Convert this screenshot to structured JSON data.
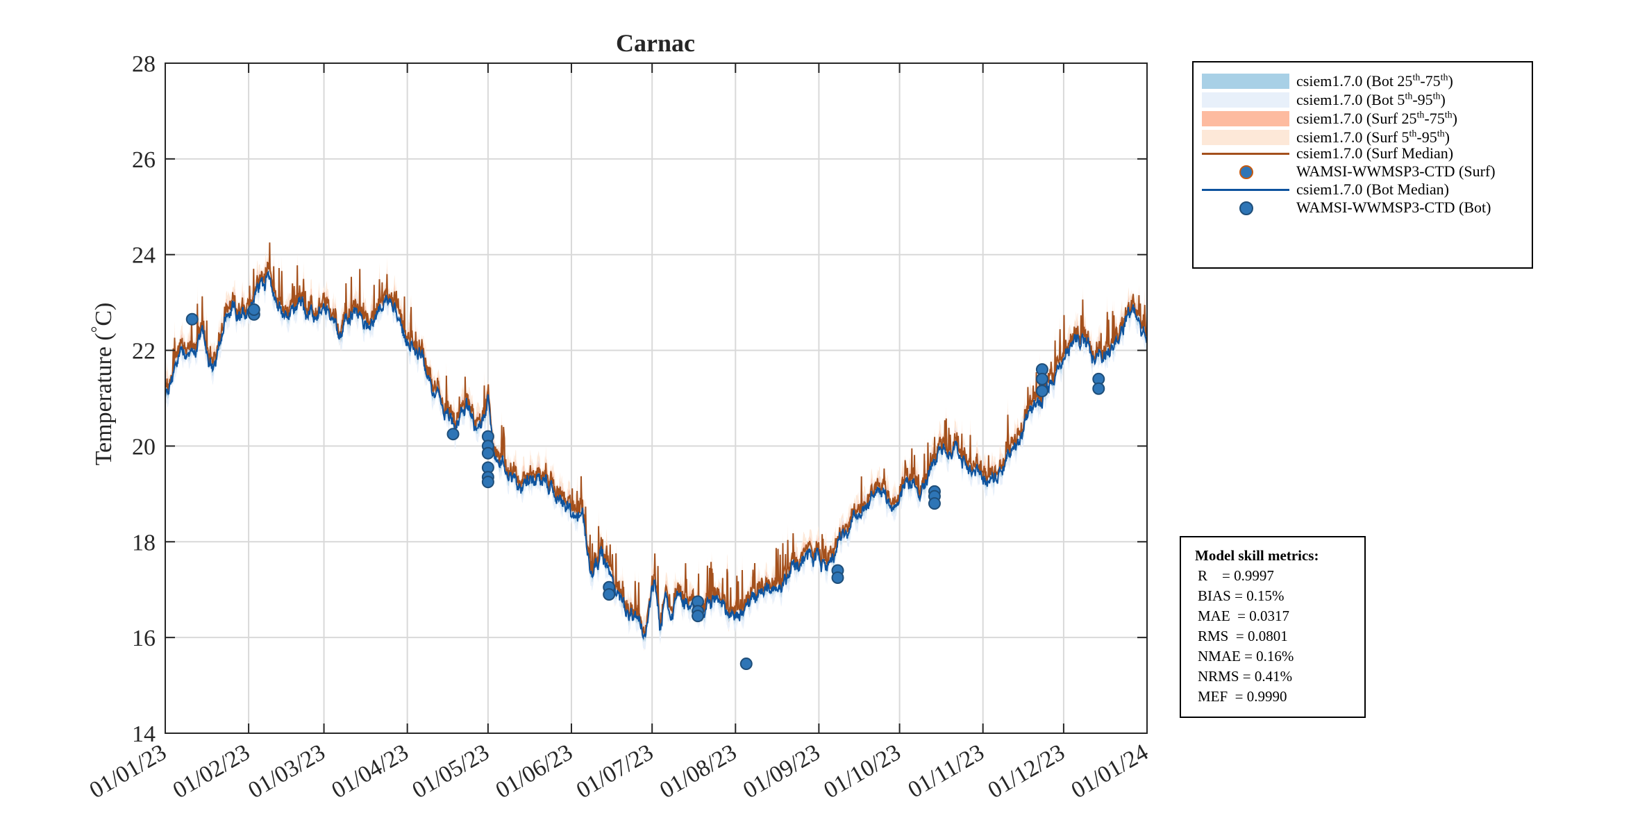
{
  "chart_data": {
    "type": "line",
    "title": "Carnac",
    "ylabel": "Temperature (°C)",
    "ylabel_text": "Temperature (",
    "ylabel_degree": "°",
    "ylabel_unit": "C)",
    "xlabel": "",
    "ylim": [
      14,
      28
    ],
    "yticks": [
      14,
      16,
      18,
      20,
      22,
      24,
      26,
      28
    ],
    "xlim_day": [
      0,
      365
    ],
    "xticks": [
      {
        "day": 0,
        "label": "01/01/23"
      },
      {
        "day": 31,
        "label": "01/02/23"
      },
      {
        "day": 59,
        "label": "01/03/23"
      },
      {
        "day": 90,
        "label": "01/04/23"
      },
      {
        "day": 120,
        "label": "01/05/23"
      },
      {
        "day": 151,
        "label": "01/06/23"
      },
      {
        "day": 181,
        "label": "01/07/23"
      },
      {
        "day": 212,
        "label": "01/08/23"
      },
      {
        "day": 243,
        "label": "01/09/23"
      },
      {
        "day": 273,
        "label": "01/10/23"
      },
      {
        "day": 304,
        "label": "01/11/23"
      },
      {
        "day": 334,
        "label": "01/12/23"
      },
      {
        "day": 365,
        "label": "01/01/24"
      }
    ],
    "grid": true,
    "colors": {
      "bot_median": "#0d539e",
      "surf_median": "#a4501c",
      "bot_25_75": "#a8d0e6",
      "bot_5_95": "#e8f0fa",
      "surf_25_75": "#fdbba0",
      "surf_5_95": "#fde8d8",
      "marker_fill": "#2e75b6",
      "marker_edge": "#1f4e79",
      "surf_marker_edge": "#c55a11"
    },
    "series_anchors": {
      "name": "csiem1.7.0 (Bot Median)",
      "day": [
        0,
        3,
        6,
        10,
        14,
        18,
        22,
        25,
        28,
        31,
        34,
        38,
        42,
        46,
        50,
        55,
        60,
        65,
        70,
        75,
        80,
        84,
        88,
        92,
        96,
        100,
        104,
        108,
        112,
        116,
        118,
        120,
        122,
        124,
        128,
        132,
        136,
        140,
        144,
        148,
        151,
        155,
        158,
        162,
        166,
        170,
        174,
        178,
        180,
        182,
        184,
        186,
        188,
        190,
        195,
        200,
        205,
        210,
        215,
        220,
        225,
        230,
        235,
        240,
        245,
        250,
        255,
        260,
        265,
        270,
        275,
        280,
        285,
        290,
        295,
        300,
        305,
        310,
        315,
        320,
        325,
        330,
        335,
        340,
        345,
        350,
        355,
        360,
        365
      ],
      "temp": [
        21.0,
        21.5,
        22.1,
        21.9,
        22.3,
        21.5,
        22.6,
        22.8,
        22.6,
        22.9,
        23.3,
        23.6,
        22.9,
        22.7,
        23.0,
        22.6,
        22.8,
        22.4,
        22.8,
        22.5,
        22.9,
        23.0,
        22.5,
        22.0,
        21.7,
        21.2,
        20.6,
        20.4,
        20.8,
        20.3,
        20.6,
        21.0,
        20.0,
        19.6,
        19.5,
        19.2,
        19.4,
        19.3,
        19.0,
        18.8,
        18.5,
        18.7,
        17.4,
        17.8,
        17.2,
        16.8,
        16.3,
        16.0,
        16.7,
        17.3,
        16.2,
        16.8,
        16.4,
        16.9,
        16.7,
        16.5,
        16.8,
        16.4,
        16.6,
        16.9,
        17.0,
        17.3,
        17.5,
        17.7,
        17.4,
        18.0,
        18.4,
        18.8,
        19.0,
        18.8,
        19.3,
        19.1,
        19.6,
        19.9,
        19.8,
        19.5,
        19.2,
        19.4,
        19.9,
        20.4,
        21.0,
        21.4,
        22.0,
        22.2,
        21.9,
        22.0,
        22.4,
        22.9,
        22.3
      ]
    },
    "observations": {
      "name": "WAMSI-WWMSP3-CTD (Bot)",
      "points": [
        {
          "day": 10,
          "temp": 22.65
        },
        {
          "day": 33,
          "temp": 22.75
        },
        {
          "day": 33,
          "temp": 22.85
        },
        {
          "day": 107,
          "temp": 20.25
        },
        {
          "day": 120,
          "temp": 20.2
        },
        {
          "day": 120,
          "temp": 20.0
        },
        {
          "day": 120,
          "temp": 19.85
        },
        {
          "day": 120,
          "temp": 19.55
        },
        {
          "day": 120,
          "temp": 19.35
        },
        {
          "day": 120,
          "temp": 19.25
        },
        {
          "day": 165,
          "temp": 17.05
        },
        {
          "day": 165,
          "temp": 16.9
        },
        {
          "day": 198,
          "temp": 16.75
        },
        {
          "day": 198,
          "temp": 16.55
        },
        {
          "day": 198,
          "temp": 16.45
        },
        {
          "day": 216,
          "temp": 15.45
        },
        {
          "day": 250,
          "temp": 17.4
        },
        {
          "day": 250,
          "temp": 17.25
        },
        {
          "day": 286,
          "temp": 19.05
        },
        {
          "day": 286,
          "temp": 18.95
        },
        {
          "day": 286,
          "temp": 18.8
        },
        {
          "day": 326,
          "temp": 21.6
        },
        {
          "day": 326,
          "temp": 21.4
        },
        {
          "day": 326,
          "temp": 21.15
        },
        {
          "day": 347,
          "temp": 21.4
        },
        {
          "day": 347,
          "temp": 21.2
        }
      ]
    }
  },
  "legend": {
    "entries": [
      {
        "kind": "patch",
        "color_key": "bot_25_75",
        "label": "csiem1.7.0 (Bot 25",
        "sup1": "th",
        "mid": "-75",
        "sup2": "th",
        "end": ")"
      },
      {
        "kind": "patch",
        "color_key": "bot_5_95",
        "label": "csiem1.7.0 (Bot 5",
        "sup1": "th",
        "mid": "-95",
        "sup2": "th",
        "end": ")"
      },
      {
        "kind": "patch",
        "color_key": "surf_25_75",
        "label": "csiem1.7.0 (Surf 25",
        "sup1": "th",
        "mid": "-75",
        "sup2": "th",
        "end": ")"
      },
      {
        "kind": "patch",
        "color_key": "surf_5_95",
        "label": "csiem1.7.0 (Surf 5",
        "sup1": "th",
        "mid": "-95",
        "sup2": "th",
        "end": ")"
      },
      {
        "kind": "line",
        "color_key": "surf_median",
        "label": "csiem1.7.0 (Surf Median)"
      },
      {
        "kind": "marker-surf",
        "label": "WAMSI-WWMSP3-CTD (Surf)"
      },
      {
        "kind": "line",
        "color_key": "bot_median",
        "label": "csiem1.7.0 (Bot Median)"
      },
      {
        "kind": "marker",
        "label": "WAMSI-WWMSP3-CTD (Bot)"
      }
    ]
  },
  "skill": {
    "header": "Model skill metrics:",
    "metrics": [
      "R    = 0.9997",
      "BIAS = 0.15%",
      "MAE  = 0.0317",
      "RMS  = 0.0801",
      "NMAE = 0.16%",
      "NRMS = 0.41%",
      "MEF  = 0.9990"
    ]
  }
}
